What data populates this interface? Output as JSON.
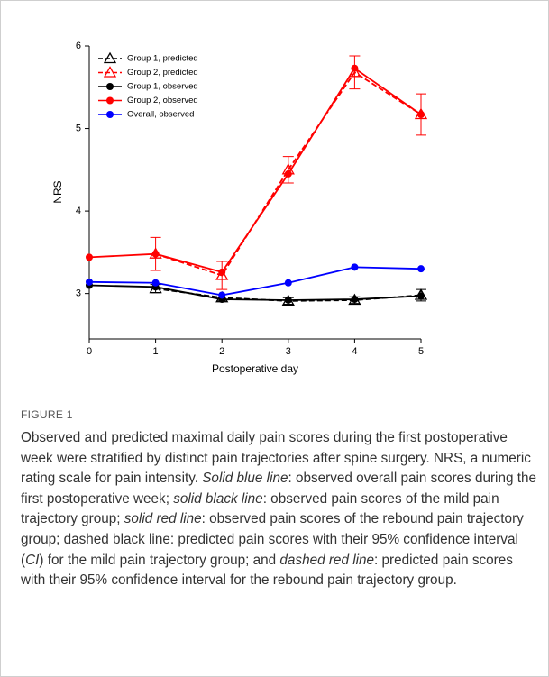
{
  "chart_data": {
    "type": "line",
    "x": [
      0,
      1,
      2,
      3,
      4,
      5
    ],
    "xlim": [
      0,
      5
    ],
    "xticks": [
      0,
      1,
      2,
      3,
      4,
      5
    ],
    "ylim": [
      2.45,
      6
    ],
    "yticks": [
      3,
      4,
      5,
      6
    ],
    "xlabel": "Postoperative day",
    "ylabel": "NRS",
    "legend": "upper left",
    "series": [
      {
        "name": "Group 1, predicted",
        "color": "#000000",
        "dashed": true,
        "marker": "triangle-open",
        "values": [
          null,
          3.06,
          2.95,
          2.91,
          2.92,
          2.98
        ],
        "errors": [
          null,
          0.05,
          0.04,
          0.04,
          0.04,
          0.07
        ]
      },
      {
        "name": "Group 2, predicted",
        "color": "#ff0000",
        "dashed": true,
        "marker": "triangle-open",
        "values": [
          null,
          3.48,
          3.22,
          4.5,
          5.68,
          5.17
        ],
        "errors": [
          null,
          0.2,
          0.17,
          0.16,
          0.2,
          0.25
        ]
      },
      {
        "name": "Group 1, observed",
        "color": "#000000",
        "dashed": false,
        "marker": "circle",
        "values": [
          3.1,
          3.08,
          2.93,
          2.92,
          2.93,
          2.97
        ]
      },
      {
        "name": "Group 2, observed",
        "color": "#ff0000",
        "dashed": false,
        "marker": "circle",
        "values": [
          3.44,
          3.48,
          3.26,
          4.45,
          5.73,
          5.17
        ]
      },
      {
        "name": "Overall, observed",
        "color": "#0000ff",
        "dashed": false,
        "marker": "circle",
        "values": [
          3.14,
          3.13,
          2.98,
          3.13,
          3.32,
          3.3
        ]
      }
    ]
  },
  "caption": {
    "label": "FIGURE 1",
    "segments": [
      {
        "text": "Observed and predicted maximal daily pain scores during the first postoperative week were stratified by distinct pain trajectories after spine surgery. NRS, a numeric rating scale for pain intensity. ",
        "italic": false
      },
      {
        "text": "Solid blue line",
        "italic": true
      },
      {
        "text": ": observed overall pain scores during the first postoperative week; ",
        "italic": false
      },
      {
        "text": "solid black line",
        "italic": true
      },
      {
        "text": ": observed pain scores of the mild pain trajectory group; ",
        "italic": false
      },
      {
        "text": "solid red line",
        "italic": true
      },
      {
        "text": ": observed pain scores of the rebound pain trajectory group; dashed black line: predicted pain scores with their 95% confidence interval (",
        "italic": false
      },
      {
        "text": "CI",
        "italic": true
      },
      {
        "text": ") for the mild pain trajectory group; and ",
        "italic": false
      },
      {
        "text": "dashed red line",
        "italic": true
      },
      {
        "text": ": predicted pain scores with their 95% confidence interval for the rebound pain trajectory group.",
        "italic": false
      }
    ]
  }
}
